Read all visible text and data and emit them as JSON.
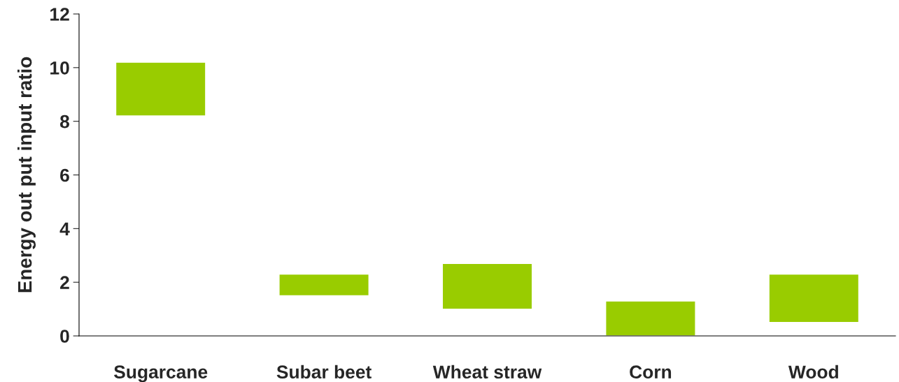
{
  "chart_data": {
    "type": "bar",
    "ylabel": "Energy out put input ratio",
    "categories": [
      "Sugarcane",
      "Subar beet",
      "Wheat straw",
      "Corn",
      "Wood"
    ],
    "base": [
      8.2,
      1.5,
      1.0,
      0,
      0.5
    ],
    "values": [
      2.0,
      0.8,
      1.7,
      1.3,
      1.8
    ],
    "color": "#99cc00",
    "ylim": [
      0,
      12
    ],
    "yticks": [
      0,
      2,
      4,
      6,
      8,
      10,
      12
    ],
    "grid": false,
    "legend": false
  }
}
